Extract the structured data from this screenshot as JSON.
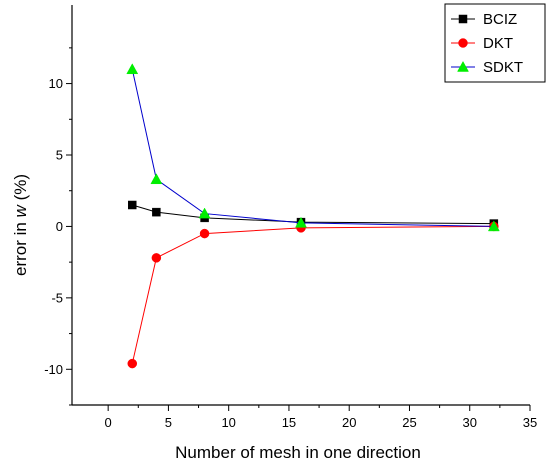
{
  "chart_data": {
    "type": "line",
    "xlabel": "Number of mesh in one direction",
    "ylabel_prefix": "error in ",
    "ylabel_var": "w",
    "ylabel_suffix": " (%)",
    "xlim": [
      -3,
      35
    ],
    "ylim": [
      -12.5,
      15.5
    ],
    "xticks": [
      0,
      5,
      10,
      15,
      20,
      25,
      30,
      35
    ],
    "yticks": [
      -10,
      -5,
      0,
      5,
      10
    ],
    "legend_position": "top-right",
    "series": [
      {
        "name": "BCIZ",
        "color": "#000000",
        "marker": "square",
        "x": [
          2,
          4,
          8,
          16,
          32
        ],
        "y": [
          1.5,
          1.0,
          0.6,
          0.3,
          0.2
        ]
      },
      {
        "name": "DKT",
        "color": "#ff0000",
        "marker": "circle",
        "x": [
          2,
          4,
          8,
          16,
          32
        ],
        "y": [
          -9.6,
          -2.2,
          -0.5,
          -0.1,
          0.0
        ]
      },
      {
        "name": "SDKT",
        "color": "#0000cc",
        "marker_fill": "#00ee00",
        "marker": "triangle",
        "x": [
          2,
          4,
          8,
          16,
          32
        ],
        "y": [
          11.0,
          3.3,
          0.9,
          0.25,
          0.0
        ]
      }
    ]
  }
}
